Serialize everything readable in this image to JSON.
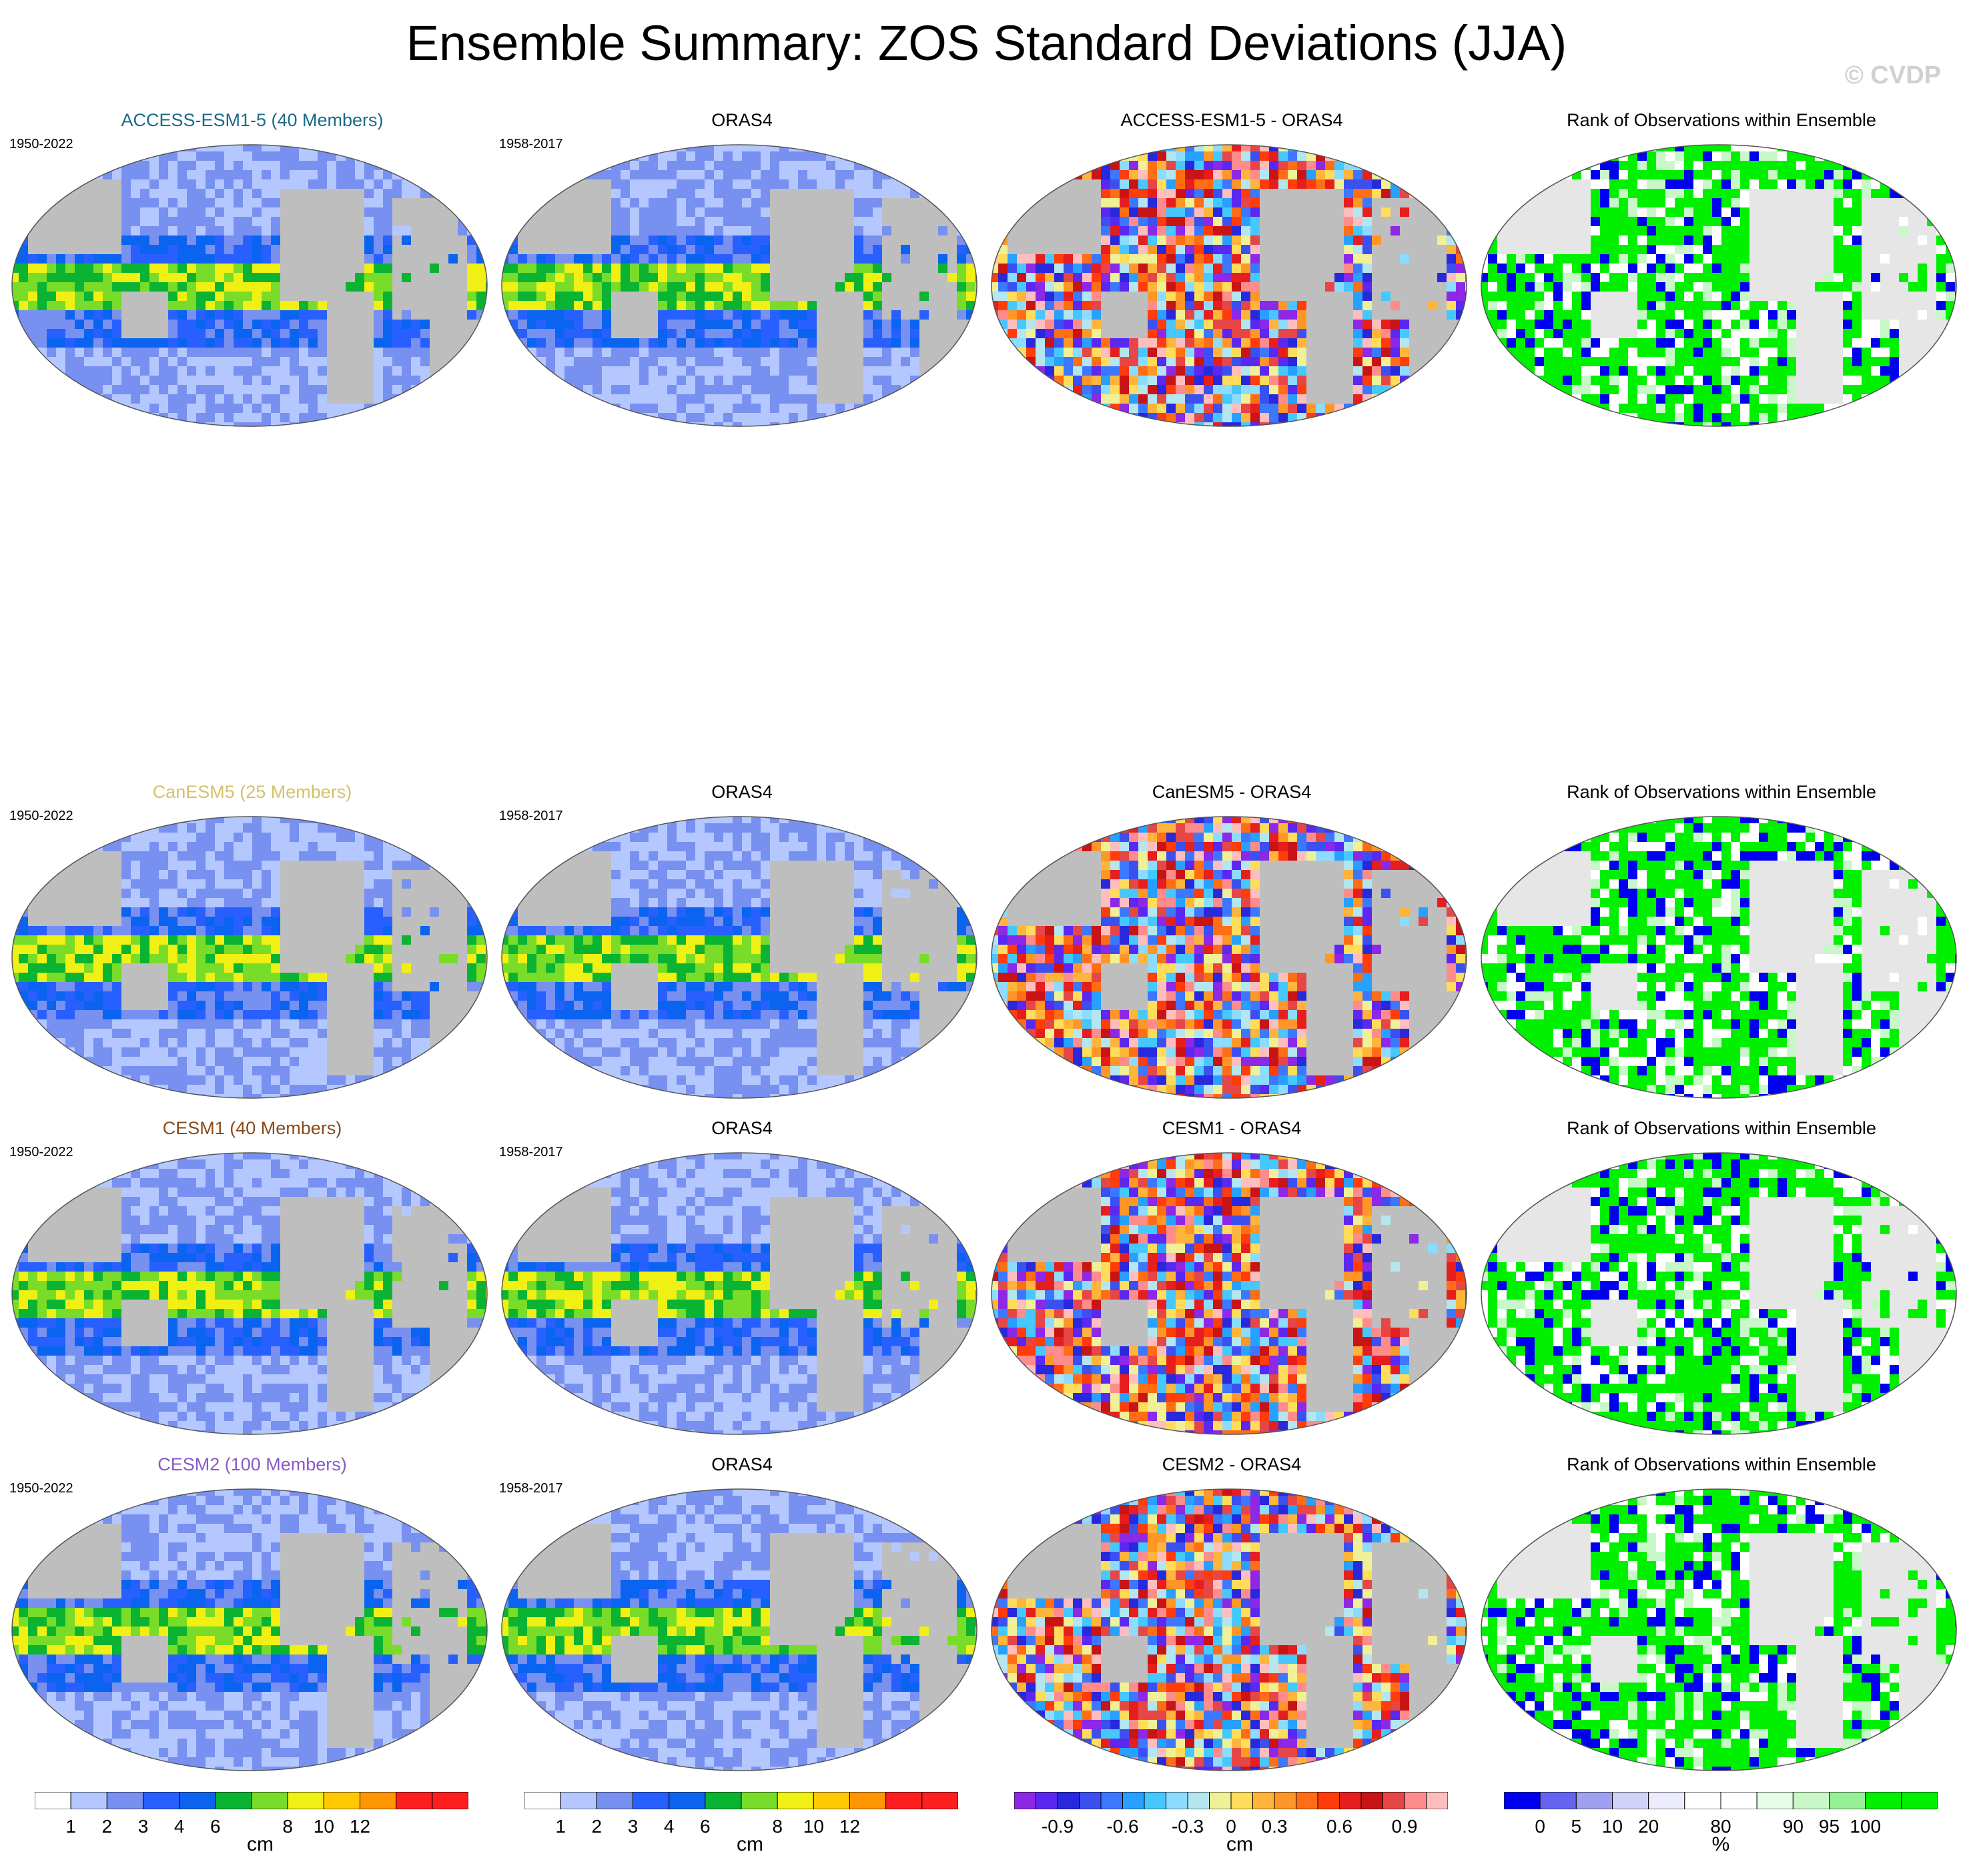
{
  "title": "Ensemble Summary: ZOS Standard Deviations (JJA)",
  "watermark": "© CVDP",
  "rows": [
    {
      "model_title": "ACCESS-ESM1-5 (40 Members)",
      "model_color": "#1a6a8a",
      "model_years": "1950-2022",
      "obs_title": "ORAS4",
      "obs_years": "1958-2017",
      "diff_title": "ACCESS-ESM1-5 - ORAS4",
      "rank_title": "Rank of Observations within Ensemble"
    },
    {
      "model_title": "CanESM5 (25 Members)",
      "model_color": "#d2c26a",
      "model_years": "1950-2022",
      "obs_title": "ORAS4",
      "obs_years": "1958-2017",
      "diff_title": "CanESM5 - ORAS4",
      "rank_title": "Rank of Observations within Ensemble"
    },
    {
      "model_title": "CESM1 (40 Members)",
      "model_color": "#8a4a1a",
      "model_years": "1950-2022",
      "obs_title": "ORAS4",
      "obs_years": "1958-2017",
      "diff_title": "CESM1 - ORAS4",
      "rank_title": "Rank of Observations within Ensemble"
    },
    {
      "model_title": "CESM2 (100 Members)",
      "model_color": "#8a5ac8",
      "model_years": "1950-2022",
      "obs_title": "ORAS4",
      "obs_years": "1958-2017",
      "diff_title": "CESM2 - ORAS4",
      "rank_title": "Rank of Observations within Ensemble"
    }
  ],
  "colorbars": [
    {
      "id": "std",
      "colors": [
        "#ffffff",
        "#b4c8ff",
        "#7890f0",
        "#2860ff",
        "#0a64f0",
        "#0ab432",
        "#78dc28",
        "#f0f014",
        "#ffc800",
        "#ff9600",
        "#ff1e1e",
        "#ff1e1e"
      ],
      "labels": [
        "1",
        "2",
        "3",
        "4",
        "6",
        "8",
        "10",
        "12"
      ],
      "label_after": [
        1,
        2,
        3,
        4,
        5,
        7,
        8,
        9
      ],
      "unit": "cm"
    },
    {
      "id": "std-obs",
      "colors": [
        "#ffffff",
        "#b4c8ff",
        "#7890f0",
        "#2860ff",
        "#0a64f0",
        "#0ab432",
        "#78dc28",
        "#f0f014",
        "#ffc800",
        "#ff9600",
        "#ff1e1e",
        "#ff1e1e"
      ],
      "labels": [
        "1",
        "2",
        "3",
        "4",
        "6",
        "8",
        "10",
        "12"
      ],
      "label_after": [
        1,
        2,
        3,
        4,
        5,
        7,
        8,
        9
      ],
      "unit": "cm"
    },
    {
      "id": "diff",
      "colors": [
        "#8c28e6",
        "#5a28f0",
        "#2828dc",
        "#3c50f0",
        "#3c78ff",
        "#28a0ff",
        "#46c8ff",
        "#8cdcff",
        "#b4e6f0",
        "#f0f096",
        "#ffdc5a",
        "#ffb43c",
        "#ff9628",
        "#ff6e14",
        "#ff3c0a",
        "#e61e1e",
        "#c81414",
        "#e64646",
        "#ff8c8c",
        "#ffbebe"
      ],
      "labels": [
        "-0.9",
        "-0.6",
        "-0.3",
        "0",
        "0.3",
        "0.6",
        "0.9"
      ],
      "label_after": [
        2,
        5,
        8,
        10,
        12,
        15,
        18
      ],
      "unit": "cm"
    },
    {
      "id": "rank",
      "colors": [
        "#0000f0",
        "#6464f0",
        "#a0a0f0",
        "#d2d2f8",
        "#ececfc",
        "#ffffff",
        "#ffffff",
        "#e6fce6",
        "#c8f8c8",
        "#96f096",
        "#00f000",
        "#00f000"
      ],
      "labels": [
        "0",
        "5",
        "10",
        "20",
        "80",
        "90",
        "95",
        "100"
      ],
      "label_after": [
        1,
        2,
        3,
        4,
        6,
        8,
        9,
        10
      ],
      "unit": "%"
    }
  ]
}
